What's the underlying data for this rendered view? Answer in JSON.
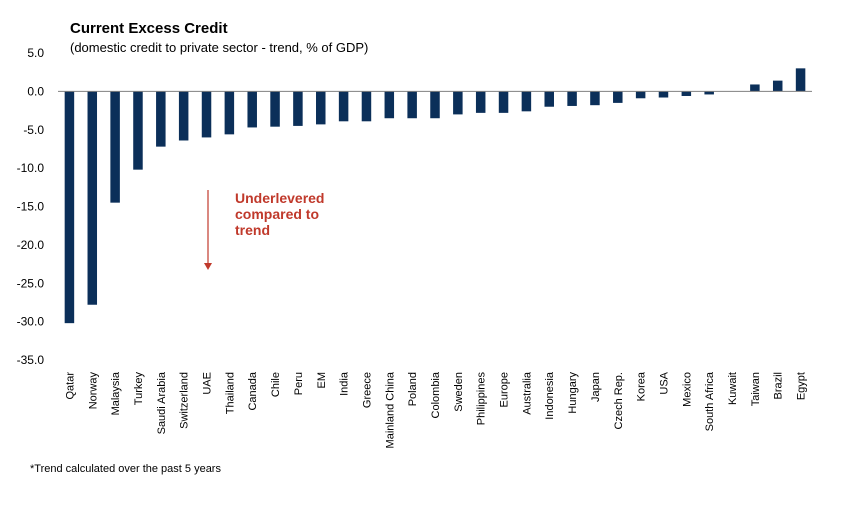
{
  "colors": {
    "bar": "#0b2f59",
    "annotation": "#c0392b",
    "axis": "#808080"
  },
  "chart_data": {
    "type": "bar",
    "title": "Current Excess Credit",
    "subtitle": "(domestic credit to private sector - trend, % of GDP)",
    "xlabel": "",
    "ylabel": "",
    "ylim": [
      -35,
      5
    ],
    "yticks": [
      5,
      0,
      -5,
      -10,
      -15,
      -20,
      -25,
      -30,
      -35
    ],
    "ytick_labels": [
      "5.0",
      "0.0",
      "-5.0",
      "-10.0",
      "-15.0",
      "-20.0",
      "-25.0",
      "-30.0",
      "-35.0"
    ],
    "grid": false,
    "legend": "none",
    "categories": [
      "Qatar",
      "Norway",
      "Malaysia",
      "Turkey",
      "Saudi Arabia",
      "Switzerland",
      "UAE",
      "Thailand",
      "Canada",
      "Chile",
      "Peru",
      "EM",
      "India",
      "Greece",
      "Mainland China",
      "Poland",
      "Colombia",
      "Sweden",
      "Philippines",
      "Europe",
      "Australia",
      "Indonesia",
      "Hungary",
      "Japan",
      "Czech Rep.",
      "Korea",
      "USA",
      "Mexico",
      "South Africa",
      "Kuwait",
      "Taiwan",
      "Brazil",
      "Egypt"
    ],
    "values": [
      -30.2,
      -27.8,
      -14.5,
      -10.2,
      -7.2,
      -6.4,
      -6.0,
      -5.6,
      -4.7,
      -4.6,
      -4.5,
      -4.3,
      -3.9,
      -3.9,
      -3.5,
      -3.5,
      -3.5,
      -3.0,
      -2.8,
      -2.8,
      -2.6,
      -2.0,
      -1.9,
      -1.8,
      -1.5,
      -0.9,
      -0.8,
      -0.6,
      -0.4,
      0.0,
      0.9,
      1.4,
      3.0
    ],
    "annotations": [
      {
        "lines": [
          "Underlevered",
          "compared to",
          "trend"
        ]
      }
    ],
    "footnote": "*Trend calculated over the past 5 years"
  }
}
